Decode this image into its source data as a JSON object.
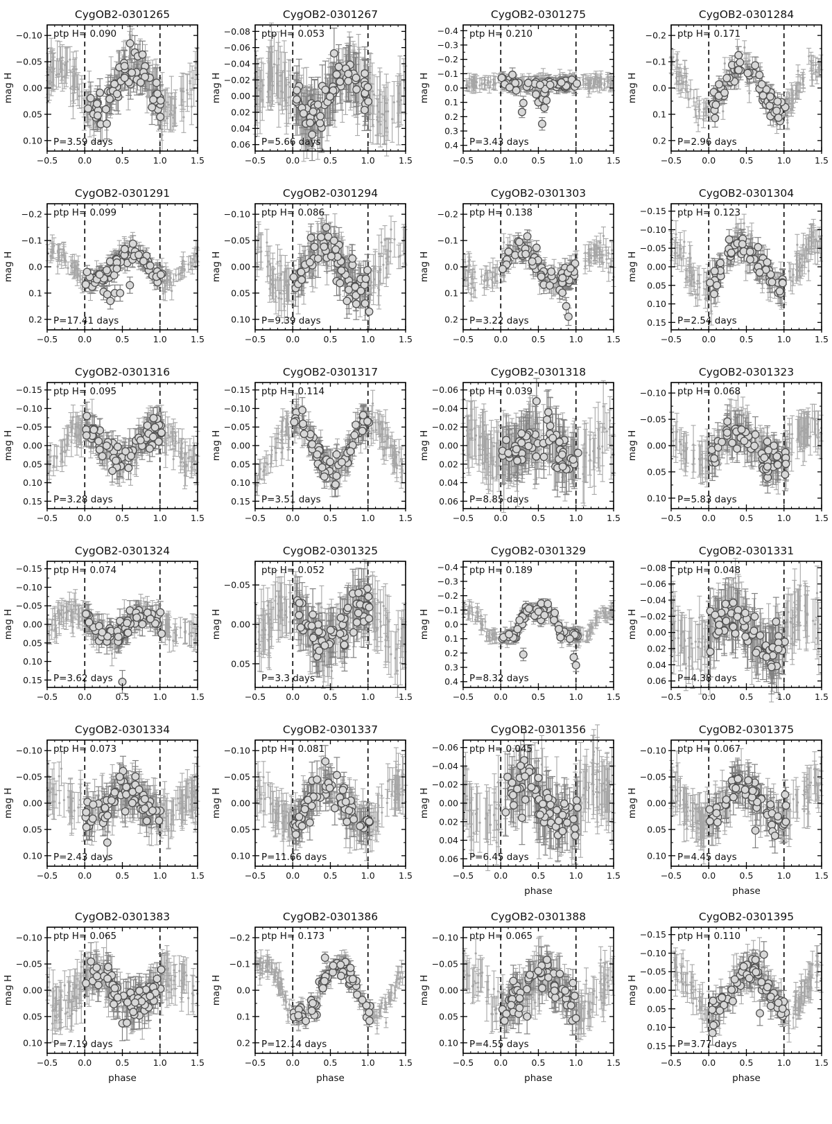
{
  "figure": {
    "type": "multi-panel phase-folded light curves",
    "rows": 6,
    "cols": 4,
    "xlabel": "phase",
    "ylabel": "mag H",
    "annotation_prefix": "ptp H=",
    "colors": {
      "background": "#ffffff",
      "box": "#000000",
      "text": "#111111",
      "dashed_line": "#000000",
      "bg_errorbar": "#a6a6a6",
      "big_errorbar": "#7f7f7f",
      "marker_fill": "#d8d8d8",
      "marker_edge": "#4f4f4f"
    }
  },
  "chart_data": {
    "type": "scatter",
    "x_axis": {
      "label": "phase",
      "xlim": [
        -0.5,
        1.5
      ],
      "xticks": [
        -0.5,
        0.0,
        0.5,
        1.0,
        1.5
      ],
      "dashed_lines_at": [
        0.0,
        1.0
      ]
    },
    "y_axis_label": "mag H",
    "panels": [
      {
        "id": "CygOB2-0301265",
        "ptp_label": "ptp H=  0.090",
        "period_label": "P=3.59 days",
        "ptp": 0.09,
        "period_days": 3.59,
        "yticks": [
          -0.1,
          -0.05,
          0.0,
          0.05,
          0.1
        ],
        "ydec": 2,
        "ylim": [
          -0.12,
          0.12
        ],
        "profile": "sine",
        "amp": 0.045,
        "phase_max": 0.65,
        "scatter": 0.018,
        "err": 0.028,
        "n_big": 60,
        "outliers": [],
        "show_phase_label": false,
        "seed": 11
      },
      {
        "id": "CygOB2-0301267",
        "ptp_label": "ptp H=  0.053",
        "period_label": "P=5.66 days",
        "ptp": 0.053,
        "period_days": 5.66,
        "yticks": [
          -0.08,
          -0.06,
          -0.04,
          -0.02,
          0.0,
          0.02,
          0.04,
          0.06
        ],
        "ydec": 2,
        "ylim": [
          -0.088,
          0.068
        ],
        "profile": "sine",
        "amp": 0.026,
        "phase_max": 0.75,
        "scatter": 0.012,
        "err": 0.03,
        "n_big": 65,
        "outliers": [],
        "show_phase_label": false,
        "seed": 22
      },
      {
        "id": "CygOB2-0301275",
        "ptp_label": "ptp H=  0.210",
        "period_label": "P=3.43 days",
        "ptp": 0.21,
        "period_days": 3.43,
        "yticks": [
          -0.4,
          -0.3,
          -0.2,
          -0.1,
          0.0,
          0.1,
          0.2,
          0.3,
          0.4
        ],
        "ydec": 1,
        "ylim": [
          -0.44,
          0.44
        ],
        "profile": "eclipse",
        "amp": 0.035,
        "phase_max": 0.5,
        "scatter": 0.02,
        "err": 0.04,
        "n_big": 55,
        "faint_scatter": {
          "prob": 0.42,
          "min": 0.04,
          "max": 0.2,
          "pmin": 0.2,
          "pmax": 0.65
        },
        "outliers": [
          [
            0.55,
            0.25
          ]
        ],
        "show_phase_label": false,
        "seed": 33
      },
      {
        "id": "CygOB2-0301284",
        "ptp_label": "ptp H=  0.171",
        "period_label": "P=2.96 days",
        "ptp": 0.171,
        "period_days": 2.96,
        "yticks": [
          -0.2,
          -0.1,
          0.0,
          0.1,
          0.2
        ],
        "ydec": 1,
        "ylim": [
          -0.24,
          0.24
        ],
        "profile": "sine",
        "amp": 0.085,
        "phase_max": 0.45,
        "scatter": 0.025,
        "err": 0.03,
        "n_big": 60,
        "outliers": [],
        "show_phase_label": false,
        "seed": 44
      },
      {
        "id": "CygOB2-0301291",
        "ptp_label": "ptp H=  0.099",
        "period_label": "P=17.41 days",
        "ptp": 0.099,
        "period_days": 17.41,
        "yticks": [
          -0.2,
          -0.1,
          0.0,
          0.1,
          0.2
        ],
        "ydec": 1,
        "ylim": [
          -0.24,
          0.24
        ],
        "profile": "sine",
        "amp": 0.05,
        "phase_max": 0.6,
        "scatter": 0.018,
        "err": 0.028,
        "n_big": 62,
        "outliers": [
          [
            0.25,
            0.095
          ],
          [
            0.3,
            0.105
          ],
          [
            0.34,
            0.13
          ],
          [
            0.4,
            0.1
          ],
          [
            0.47,
            0.1
          ],
          [
            0.6,
            0.07
          ]
        ],
        "show_phase_label": false,
        "seed": 55
      },
      {
        "id": "CygOB2-0301294",
        "ptp_label": "ptp H=  0.086",
        "period_label": "P=9.39 days",
        "ptp": 0.086,
        "period_days": 9.39,
        "yticks": [
          -0.1,
          -0.05,
          0.0,
          0.05,
          0.1
        ],
        "ydec": 2,
        "ylim": [
          -0.12,
          0.12
        ],
        "profile": "sine",
        "amp": 0.043,
        "phase_max": 0.42,
        "scatter": 0.018,
        "err": 0.03,
        "n_big": 60,
        "outliers": [
          [
            0.72,
            0.065
          ]
        ],
        "show_phase_label": false,
        "seed": 66
      },
      {
        "id": "CygOB2-0301303",
        "ptp_label": "ptp H=  0.138",
        "period_label": "P=3.22 days",
        "ptp": 0.138,
        "period_days": 3.22,
        "yticks": [
          -0.2,
          -0.1,
          0.0,
          0.1,
          0.2
        ],
        "ydec": 1,
        "ylim": [
          -0.24,
          0.24
        ],
        "profile": "sine",
        "amp": 0.065,
        "phase_max": 0.25,
        "scatter": 0.022,
        "err": 0.03,
        "n_big": 62,
        "outliers": [
          [
            0.87,
            0.15
          ],
          [
            0.9,
            0.19
          ]
        ],
        "show_phase_label": false,
        "seed": 77
      },
      {
        "id": "CygOB2-0301304",
        "ptp_label": "ptp H=  0.123",
        "period_label": "P=2.54 days",
        "ptp": 0.123,
        "period_days": 2.54,
        "yticks": [
          -0.15,
          -0.1,
          -0.05,
          0.0,
          0.05,
          0.1,
          0.15
        ],
        "ydec": 2,
        "ylim": [
          -0.17,
          0.17
        ],
        "profile": "sine",
        "amp": 0.06,
        "phase_max": 0.45,
        "scatter": 0.02,
        "err": 0.03,
        "n_big": 58,
        "outliers": [],
        "show_phase_label": false,
        "seed": 88
      },
      {
        "id": "CygOB2-0301316",
        "ptp_label": "ptp H=  0.095",
        "period_label": "P=3.28 days",
        "ptp": 0.095,
        "period_days": 3.28,
        "yticks": [
          -0.15,
          -0.1,
          -0.05,
          0.0,
          0.05,
          0.1,
          0.15
        ],
        "ydec": 2,
        "ylim": [
          -0.17,
          0.17
        ],
        "profile": "sine",
        "amp": 0.05,
        "phase_max": 0.97,
        "scatter": 0.02,
        "err": 0.032,
        "n_big": 64,
        "outliers": [],
        "show_phase_label": false,
        "seed": 99
      },
      {
        "id": "CygOB2-0301317",
        "ptp_label": "ptp H=  0.114",
        "period_label": "P=3.51 days",
        "ptp": 0.114,
        "period_days": 3.51,
        "yticks": [
          -0.15,
          -0.1,
          -0.05,
          0.0,
          0.05,
          0.1,
          0.15
        ],
        "ydec": 2,
        "ylim": [
          -0.17,
          0.17
        ],
        "profile": "sine",
        "amp": 0.068,
        "phase_max": 0.03,
        "scatter": 0.02,
        "err": 0.03,
        "n_big": 64,
        "outliers": [],
        "show_phase_label": false,
        "seed": 110
      },
      {
        "id": "CygOB2-0301318",
        "ptp_label": "ptp H=  0.039",
        "period_label": "P=8.85 days",
        "ptp": 0.039,
        "period_days": 8.85,
        "yticks": [
          -0.06,
          -0.04,
          -0.02,
          0.0,
          0.02,
          0.04,
          0.06
        ],
        "ydec": 2,
        "ylim": [
          -0.068,
          0.068
        ],
        "profile": "sine",
        "amp": 0.013,
        "phase_max": 0.5,
        "scatter": 0.012,
        "err": 0.026,
        "n_big": 62,
        "outliers": [],
        "show_phase_label": false,
        "seed": 121
      },
      {
        "id": "CygOB2-0301323",
        "ptp_label": "ptp H=  0.068",
        "period_label": "P=5.83 days",
        "ptp": 0.068,
        "period_days": 5.83,
        "yticks": [
          -0.1,
          -0.05,
          0.0,
          0.05,
          0.1
        ],
        "ydec": 2,
        "ylim": [
          -0.12,
          0.12
        ],
        "profile": "sine",
        "amp": 0.032,
        "phase_max": 0.35,
        "scatter": 0.014,
        "err": 0.03,
        "n_big": 58,
        "outliers": [],
        "show_phase_label": false,
        "seed": 132
      },
      {
        "id": "CygOB2-0301324",
        "ptp_label": "ptp H=  0.074",
        "period_label": "P=3.62 days",
        "ptp": 0.074,
        "period_days": 3.62,
        "yticks": [
          -0.15,
          -0.1,
          -0.05,
          0.0,
          0.05,
          0.1,
          0.15
        ],
        "ydec": 2,
        "ylim": [
          -0.17,
          0.17
        ],
        "profile": "sine",
        "amp": 0.03,
        "phase_max": 0.82,
        "scatter": 0.013,
        "err": 0.028,
        "n_big": 60,
        "outliers": [
          [
            0.5,
            0.155
          ]
        ],
        "show_phase_label": false,
        "seed": 143
      },
      {
        "id": "CygOB2-0301325",
        "ptp_label": "ptp H=  0.052",
        "period_label": "P=3.3 days",
        "ptp": 0.052,
        "period_days": 3.3,
        "yticks": [
          -0.05,
          0.0,
          0.05
        ],
        "ydec": 2,
        "ylim": [
          -0.08,
          0.08
        ],
        "profile": "sine",
        "amp": 0.025,
        "phase_max": 0.95,
        "scatter": 0.013,
        "err": 0.028,
        "n_big": 62,
        "outliers": [],
        "show_phase_label": false,
        "seed": 154
      },
      {
        "id": "CygOB2-0301329",
        "ptp_label": "ptp H=  0.189",
        "period_label": "P=8.32 days",
        "ptp": 0.189,
        "period_days": 8.32,
        "yticks": [
          -0.4,
          -0.3,
          -0.2,
          -0.1,
          0.0,
          0.1,
          0.2,
          0.3,
          0.4
        ],
        "ydec": 1,
        "ylim": [
          -0.44,
          0.44
        ],
        "profile": "plateau",
        "amp": 0.09,
        "phase_max": 0.5,
        "scatter": 0.022,
        "err": 0.04,
        "n_big": 58,
        "outliers": [
          [
            0.3,
            0.21
          ],
          [
            0.97,
            0.23
          ],
          [
            1.0,
            0.285
          ]
        ],
        "show_phase_label": false,
        "seed": 165
      },
      {
        "id": "CygOB2-0301331",
        "ptp_label": "ptp H=  0.048",
        "period_label": "P=4.38 days",
        "ptp": 0.048,
        "period_days": 4.38,
        "yticks": [
          -0.08,
          -0.06,
          -0.04,
          -0.02,
          0.0,
          0.02,
          0.04,
          0.06
        ],
        "ydec": 2,
        "ylim": [
          -0.088,
          0.068
        ],
        "profile": "sine",
        "amp": 0.023,
        "phase_max": 0.3,
        "scatter": 0.013,
        "err": 0.028,
        "n_big": 60,
        "outliers": [],
        "show_phase_label": false,
        "seed": 176
      },
      {
        "id": "CygOB2-0301334",
        "ptp_label": "ptp H=  0.073",
        "period_label": "P=2.43 days",
        "ptp": 0.073,
        "period_days": 2.43,
        "yticks": [
          -0.1,
          -0.05,
          0.0,
          0.05,
          0.1
        ],
        "ydec": 2,
        "ylim": [
          -0.12,
          0.12
        ],
        "profile": "sine",
        "amp": 0.02,
        "phase_max": 0.55,
        "scatter": 0.017,
        "err": 0.03,
        "n_big": 64,
        "outliers": [
          [
            0.3,
            0.075
          ]
        ],
        "show_phase_label": false,
        "seed": 187
      },
      {
        "id": "CygOB2-0301337",
        "ptp_label": "ptp H=  0.081",
        "period_label": "P=11.66 days",
        "ptp": 0.081,
        "period_days": 11.66,
        "yticks": [
          -0.1,
          -0.05,
          0.0,
          0.05,
          0.1
        ],
        "ydec": 2,
        "ylim": [
          -0.12,
          0.12
        ],
        "profile": "sine",
        "amp": 0.04,
        "phase_max": 0.45,
        "scatter": 0.016,
        "err": 0.03,
        "n_big": 60,
        "outliers": [],
        "show_phase_label": false,
        "seed": 198
      },
      {
        "id": "CygOB2-0301356",
        "ptp_label": "ptp H=  0.045",
        "period_label": "P=6.45 days",
        "ptp": 0.045,
        "period_days": 6.45,
        "yticks": [
          -0.06,
          -0.04,
          -0.02,
          0.0,
          0.02,
          0.04,
          0.06
        ],
        "ydec": 2,
        "ylim": [
          -0.068,
          0.068
        ],
        "profile": "sine",
        "amp": 0.021,
        "phase_max": 0.3,
        "scatter": 0.013,
        "err": 0.026,
        "n_big": 60,
        "outliers": [],
        "show_phase_label": true,
        "seed": 209
      },
      {
        "id": "CygOB2-0301375",
        "ptp_label": "ptp H=  0.067",
        "period_label": "P=4.45 days",
        "ptp": 0.067,
        "period_days": 4.45,
        "yticks": [
          -0.1,
          -0.05,
          0.0,
          0.05,
          0.1
        ],
        "ydec": 2,
        "ylim": [
          -0.12,
          0.12
        ],
        "profile": "sine",
        "amp": 0.032,
        "phase_max": 0.45,
        "scatter": 0.016,
        "err": 0.03,
        "n_big": 58,
        "outliers": [
          [
            0.62,
            0.052
          ],
          [
            0.88,
            0.062
          ]
        ],
        "show_phase_label": true,
        "seed": 220
      },
      {
        "id": "CygOB2-0301383",
        "ptp_label": "ptp H=  0.065",
        "period_label": "P=7.19 days",
        "ptp": 0.065,
        "period_days": 7.19,
        "yticks": [
          -0.1,
          -0.05,
          0.0,
          0.05,
          0.1
        ],
        "ydec": 2,
        "ylim": [
          -0.12,
          0.12
        ],
        "profile": "sine",
        "amp": 0.032,
        "phase_max": 0.15,
        "scatter": 0.016,
        "err": 0.03,
        "n_big": 62,
        "outliers": [
          [
            0.5,
            0.063
          ],
          [
            0.56,
            0.062
          ]
        ],
        "show_phase_label": true,
        "seed": 231
      },
      {
        "id": "CygOB2-0301386",
        "ptp_label": "ptp H=  0.173",
        "period_label": "P=12.14 days",
        "ptp": 0.173,
        "period_days": 12.14,
        "yticks": [
          -0.2,
          -0.1,
          0.0,
          0.1,
          0.2
        ],
        "ydec": 1,
        "ylim": [
          -0.24,
          0.24
        ],
        "profile": "sine",
        "amp": 0.1,
        "phase_max": 0.6,
        "scatter": 0.02,
        "err": 0.025,
        "n_big": 60,
        "outliers": [],
        "show_phase_label": true,
        "seed": 242
      },
      {
        "id": "CygOB2-0301388",
        "ptp_label": "ptp H=  0.065",
        "period_label": "P=4.55 days",
        "ptp": 0.065,
        "period_days": 4.55,
        "yticks": [
          -0.1,
          -0.05,
          0.0,
          0.05,
          0.1
        ],
        "ydec": 2,
        "ylim": [
          -0.12,
          0.12
        ],
        "profile": "sine",
        "amp": 0.033,
        "phase_max": 0.55,
        "scatter": 0.017,
        "err": 0.03,
        "n_big": 62,
        "outliers": [
          [
            0.35,
            0.05
          ],
          [
            0.05,
            0.058
          ]
        ],
        "show_phase_label": true,
        "seed": 253
      },
      {
        "id": "CygOB2-0301395",
        "ptp_label": "ptp H=  0.110",
        "period_label": "P=3.77 days",
        "ptp": 0.11,
        "period_days": 3.77,
        "yticks": [
          -0.15,
          -0.1,
          -0.05,
          0.0,
          0.05,
          0.1,
          0.15
        ],
        "ydec": 2,
        "ylim": [
          -0.17,
          0.17
        ],
        "profile": "sine",
        "amp": 0.055,
        "phase_max": 0.55,
        "scatter": 0.02,
        "err": 0.03,
        "n_big": 60,
        "outliers": [
          [
            0.05,
            0.115
          ],
          [
            0.68,
            0.062
          ]
        ],
        "show_phase_label": true,
        "seed": 264
      }
    ]
  }
}
